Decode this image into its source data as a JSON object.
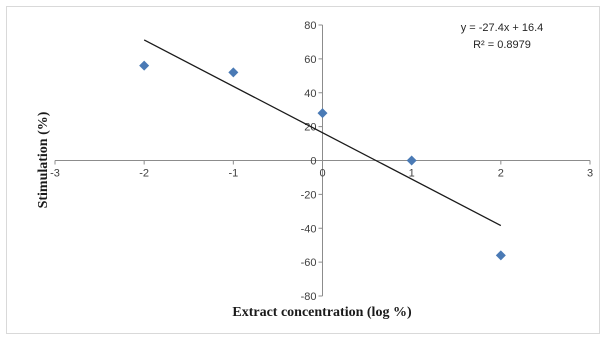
{
  "chart_data": {
    "type": "scatter",
    "xlabel": "Extract concentration (log %)",
    "ylabel": "Stimulation (%)",
    "xlim": [
      -3,
      3
    ],
    "ylim": [
      -80,
      80
    ],
    "xticks": [
      -3,
      -2,
      -1,
      0,
      1,
      2,
      3
    ],
    "yticks": [
      -80,
      -60,
      -40,
      -20,
      0,
      20,
      40,
      60,
      80
    ],
    "xtick_labels": [
      "-3",
      "-2",
      "-1",
      "0",
      "1",
      "2",
      "3"
    ],
    "ytick_labels": [
      "-80",
      "-60",
      "-40",
      "-20",
      "0",
      "20",
      "40",
      "60",
      "80"
    ],
    "grid": false,
    "points": [
      {
        "x": -2,
        "y": 56
      },
      {
        "x": -1,
        "y": 52
      },
      {
        "x": 0,
        "y": 28
      },
      {
        "x": 1,
        "y": 0
      },
      {
        "x": 2,
        "y": -56
      }
    ],
    "marker": "diamond",
    "marker_color": "#4a7ab5",
    "trendline": {
      "slope": -27.4,
      "intercept": 16.4,
      "x_range": [
        -2,
        2
      ],
      "color": "#1a1a1a"
    },
    "annotations": {
      "equation": "y = -27.4x + 16.4",
      "r_squared": "R² = 0.8979"
    }
  }
}
